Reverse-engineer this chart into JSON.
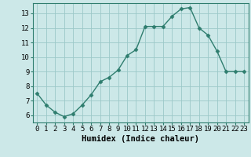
{
  "x": [
    0,
    1,
    2,
    3,
    4,
    5,
    6,
    7,
    8,
    9,
    10,
    11,
    12,
    13,
    14,
    15,
    16,
    17,
    18,
    19,
    20,
    21,
    22,
    23
  ],
  "y": [
    7.5,
    6.7,
    6.2,
    5.9,
    6.1,
    6.7,
    7.4,
    8.3,
    8.6,
    9.1,
    10.1,
    10.5,
    12.1,
    12.1,
    12.1,
    12.8,
    13.3,
    13.4,
    12.0,
    11.5,
    10.4,
    9.0,
    9.0,
    9.0
  ],
  "xlabel": "Humidex (Indice chaleur)",
  "xlim": [
    -0.5,
    23.5
  ],
  "ylim": [
    5.5,
    13.7
  ],
  "yticks": [
    6,
    7,
    8,
    9,
    10,
    11,
    12,
    13
  ],
  "xticks": [
    0,
    1,
    2,
    3,
    4,
    5,
    6,
    7,
    8,
    9,
    10,
    11,
    12,
    13,
    14,
    15,
    16,
    17,
    18,
    19,
    20,
    21,
    22,
    23
  ],
  "line_color": "#2e7d6e",
  "marker_color": "#2e7d6e",
  "bg_color": "#cce8e8",
  "grid_color": "#9cc8c8",
  "spine_color": "#2e7d6e",
  "xlabel_fontsize": 7.5,
  "tick_fontsize": 6.5,
  "markersize": 2.5,
  "linewidth": 1.0
}
